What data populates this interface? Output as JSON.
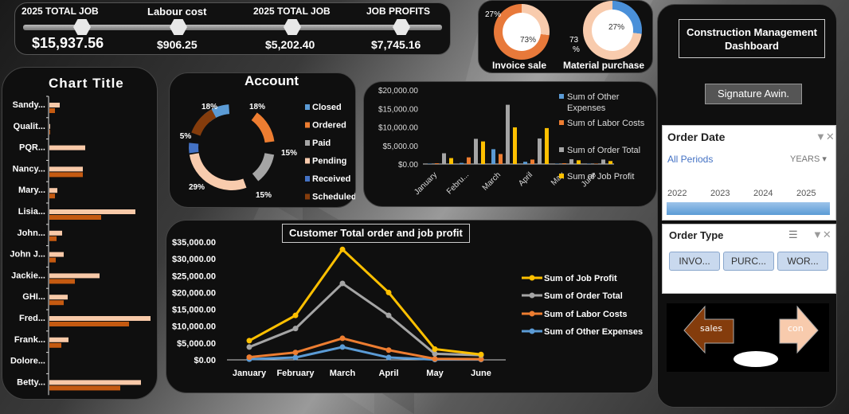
{
  "kpis": [
    {
      "label": "2025 TOTAL JOB",
      "value": "$15,937.56"
    },
    {
      "label": "Labour cost",
      "value": "$906.25"
    },
    {
      "label": "2025 TOTAL JOB",
      "value": "$5,202.40"
    },
    {
      "label": "JOB PROFITS",
      "value": "$7,745.16"
    }
  ],
  "invoice_ring": {
    "label": "Invoice sale",
    "pct_outside": "27%",
    "pct_inside": "73%",
    "value": 73,
    "color": "#e8793a"
  },
  "material_ring": {
    "label": "Material purchase",
    "pct_outside": "73",
    "pct_outside_unit": "%",
    "pct_inside": "27%",
    "value": 27,
    "color": "#4a90d9"
  },
  "bar_chart": {
    "title": "Chart Title",
    "chart_data": {
      "type": "bar",
      "categories": [
        "Sandy...",
        "Qualit...",
        "PQR...",
        "Nancy...",
        "Mary...",
        "Lisia...",
        "John...",
        "John J...",
        "Jackie...",
        "GHI...",
        "Fred...",
        "Frank...",
        "Dolore...",
        "Betty..."
      ],
      "series": [
        {
          "values": [
            13,
            1,
            45,
            42,
            10,
            108,
            16,
            18,
            63,
            23,
            127,
            24,
            0,
            115
          ],
          "color": "#f8c9a8"
        },
        {
          "values": [
            7,
            1,
            0,
            42,
            7,
            65,
            9,
            8,
            32,
            18,
            100,
            15,
            0,
            89
          ],
          "color": "#c55a11"
        }
      ]
    }
  },
  "account": {
    "title": "Account",
    "chart_data": {
      "type": "pie",
      "labels": [
        "Closed",
        "Ordered",
        "Paid",
        "Pending",
        "Received",
        "Scheduled"
      ],
      "values": [
        18,
        15,
        15,
        29,
        5,
        18
      ],
      "value_labels": [
        "18%",
        "15%",
        "15%",
        "29%",
        "5%",
        "18%"
      ],
      "colors": [
        "#5b9bd5",
        "#ed7d31",
        "#a5a5a5",
        "#f8cbad",
        "#4472c4",
        "#843c0c"
      ]
    }
  },
  "monthly": {
    "chart_data": {
      "type": "bar",
      "categories": [
        "January",
        "Febru...",
        "March",
        "April",
        "May",
        "June"
      ],
      "ylim": [
        0,
        20000
      ],
      "ticks": [
        "$20,000.00",
        "$15,000.00",
        "$10,000.00",
        "$5,000.00",
        "$0.00"
      ],
      "series": [
        {
          "name": "Sum of Other Expenses",
          "values": [
            100,
            300,
            4000,
            600,
            100,
            100
          ],
          "color": "#5b9bd5"
        },
        {
          "name": "Sum of Labor Costs",
          "values": [
            200,
            1800,
            2700,
            1200,
            200,
            100
          ],
          "color": "#ed7d31"
        },
        {
          "name": "Sum of Order Total",
          "values": [
            2900,
            6800,
            16000,
            6900,
            1300,
            1200
          ],
          "color": "#a5a5a5"
        },
        {
          "name": "Sum of Job Profit",
          "values": [
            1600,
            6100,
            9900,
            9700,
            1000,
            800
          ],
          "color": "#ffc000"
        }
      ]
    }
  },
  "line_chart": {
    "title": "Customer  Total order and job profit",
    "chart_data": {
      "type": "line",
      "categories": [
        "January",
        "February",
        "March",
        "April",
        "May",
        "June"
      ],
      "ylim": [
        0,
        35000
      ],
      "ticks": [
        "$35,000.00",
        "$30,000.00",
        "$25,000.00",
        "$20,000.00",
        "$15,000.00",
        "$10,000.00",
        "$5,000.00",
        "$0.00"
      ],
      "series": [
        {
          "name": "Sum of Job Profit",
          "values": [
            5700,
            13200,
            32800,
            20000,
            3200,
            1600
          ],
          "color": "#ffc000"
        },
        {
          "name": "Sum of Order Total",
          "values": [
            3800,
            9300,
            22700,
            13200,
            1800,
            1400
          ],
          "color": "#a5a5a5"
        },
        {
          "name": "Sum of Labor Costs",
          "values": [
            800,
            2200,
            6400,
            2900,
            300,
            200
          ],
          "color": "#ed7d31"
        },
        {
          "name": "Sum of Other Expenses",
          "values": [
            200,
            700,
            3800,
            700,
            100,
            100
          ],
          "color": "#5b9bd5"
        }
      ]
    }
  },
  "title_box": "Construction Management Dashboard",
  "signature": "Signature Awin.",
  "order_date": {
    "title": "Order Date",
    "periods": "All Periods",
    "unit": "YEARS",
    "years": [
      "2022",
      "2023",
      "2024",
      "2025"
    ]
  },
  "order_type": {
    "title": "Order Type",
    "chips": [
      "INVO...",
      "PURC...",
      "WOR..."
    ]
  },
  "nav": {
    "left": "sales",
    "right": "con"
  }
}
